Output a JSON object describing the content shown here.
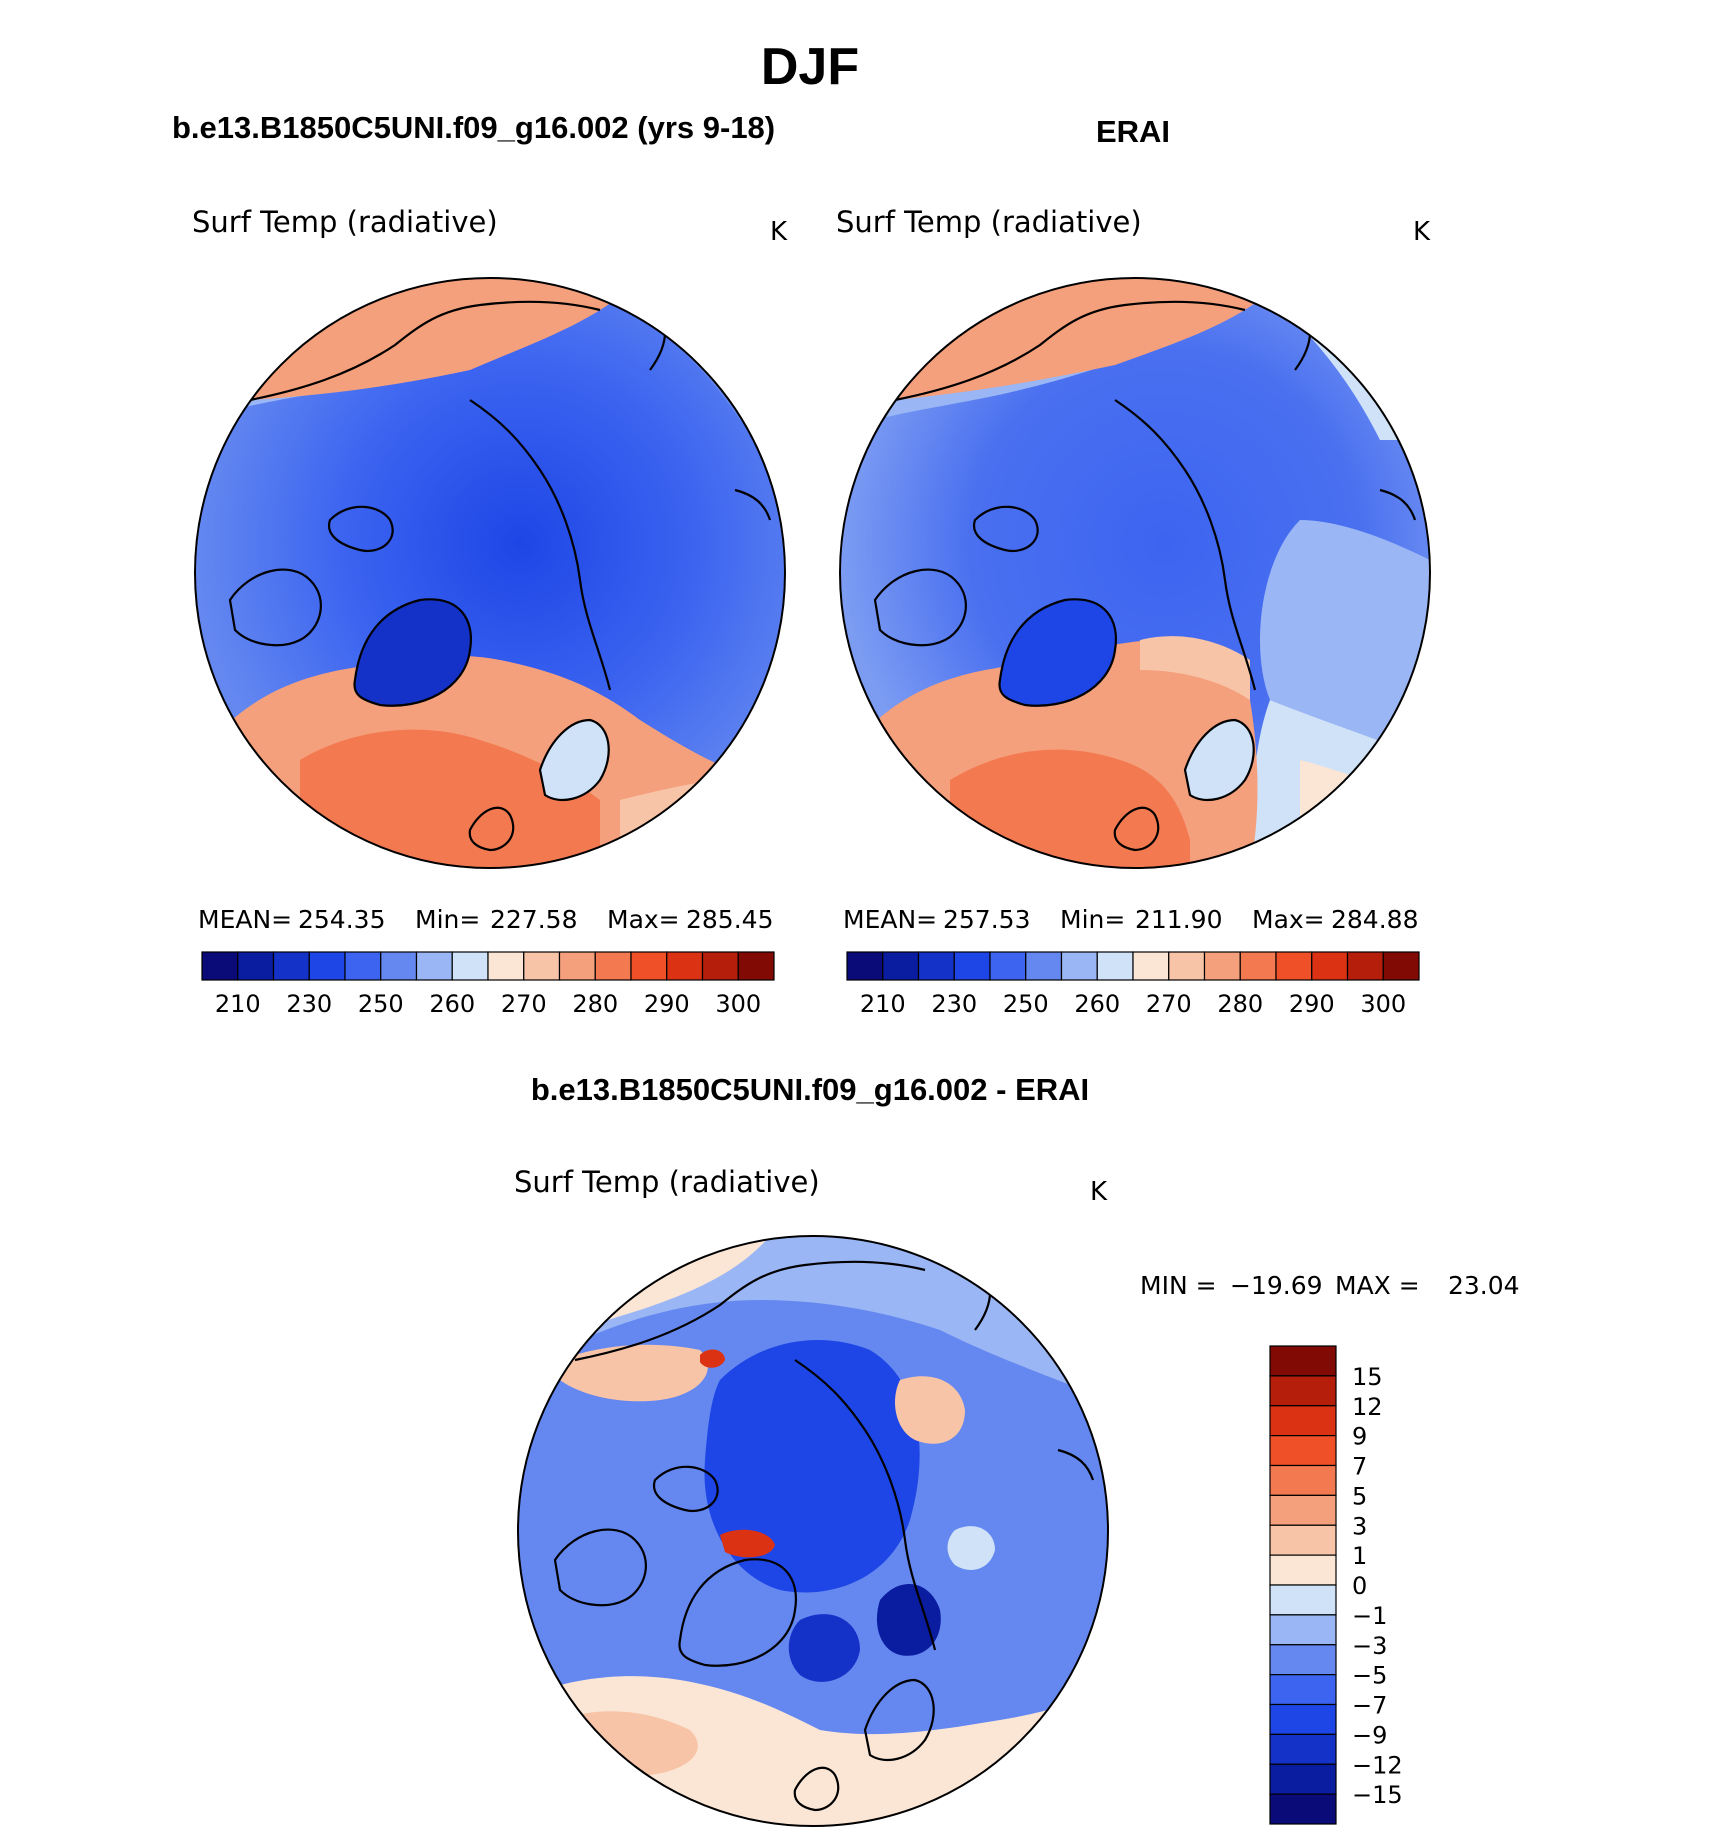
{
  "figure": {
    "season": "DJF",
    "panel_left_title": "b.e13.B1850C5UNI.f09_g16.002 (yrs 9-18)",
    "panel_right_title": "ERAI",
    "panel_diff_title": "b.e13.B1850C5UNI.f09_g16.002 - ERAI"
  },
  "panels": [
    {
      "variable": "Surf Temp (radiative)",
      "units": "K",
      "stats": {
        "mean_label": "MEAN=",
        "mean": "254.35",
        "min_label": "Min=",
        "min": "227.58",
        "max_label": "Max=",
        "max": "285.45"
      }
    },
    {
      "variable": "Surf Temp (radiative)",
      "units": "K",
      "stats": {
        "mean_label": "MEAN=",
        "mean": "257.53",
        "min_label": "Min=",
        "min": "211.90",
        "max_label": "Max=",
        "max": "284.88"
      }
    },
    {
      "variable": "Surf Temp (radiative)",
      "units": "K",
      "stats": {
        "min_label": "MIN =",
        "min": "−19.69",
        "max_label": "MAX =",
        "max": "23.04"
      }
    }
  ],
  "abs_colorbar": {
    "colors": [
      "#0a0a78",
      "#0a1ca0",
      "#1432c8",
      "#1e46e6",
      "#3c64f0",
      "#6488f0",
      "#9ab6f4",
      "#cfe2f8",
      "#fbe6d6",
      "#f8c4a8",
      "#f5a07c",
      "#f37a50",
      "#f05028",
      "#dc3214",
      "#b41e0a",
      "#820a05"
    ],
    "labels": [
      "210",
      "230",
      "250",
      "260",
      "270",
      "280",
      "290",
      "300"
    ]
  },
  "diff_colorbar": {
    "colors": [
      "#0a0a78",
      "#0a1ca0",
      "#1432c8",
      "#1e46e6",
      "#3c64f0",
      "#6488f0",
      "#9ab6f4",
      "#cfe2f8",
      "#fbe6d6",
      "#f8c4a8",
      "#f5a07c",
      "#f37a50",
      "#f05028",
      "#dc3214",
      "#b41e0a",
      "#820a05"
    ],
    "labels": [
      "15",
      "12",
      "9",
      "7",
      "5",
      "3",
      "1",
      "0",
      "−1",
      "−3",
      "−5",
      "−7",
      "−9",
      "−12",
      "−15"
    ]
  }
}
